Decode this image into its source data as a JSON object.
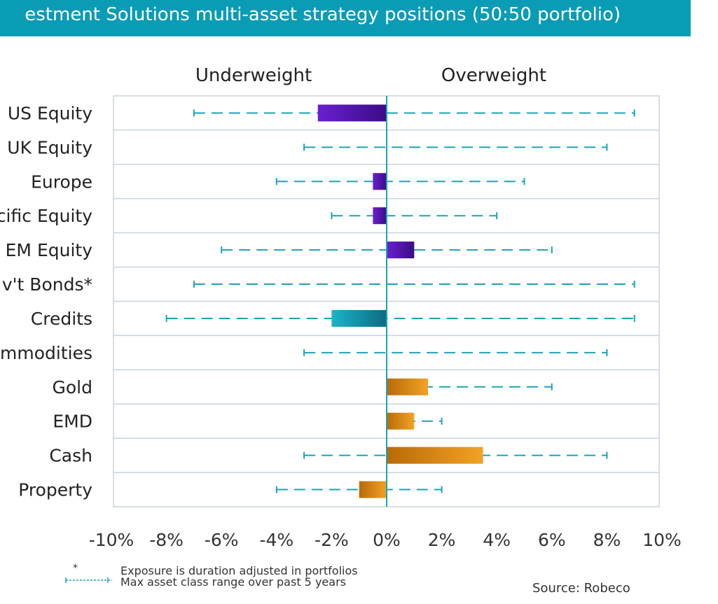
{
  "header": {
    "title": "estment Solutions multi-asset strategy positions (50:50 portfolio)"
  },
  "chart_data": {
    "type": "bar",
    "orientation": "horizontal",
    "column_headers": {
      "left": "Underweight",
      "right": "Overweight"
    },
    "categories": [
      "US Equity",
      "UK Equity",
      "Europe",
      "cific Equity",
      "EM Equity",
      "v't Bonds*",
      "Credits",
      "mmodities",
      "Gold",
      "EMD",
      "Cash",
      "Property"
    ],
    "values": [
      -2.5,
      0,
      -0.5,
      -0.5,
      1,
      0,
      -2,
      0,
      1.5,
      1,
      3.5,
      -1
    ],
    "range_min": [
      -7,
      -3,
      -4,
      -2,
      -6,
      -7,
      -8,
      -3,
      0,
      0,
      -3,
      -4
    ],
    "range_max": [
      9,
      8,
      5,
      4,
      6,
      9,
      9,
      8,
      6,
      2,
      8,
      2
    ],
    "groups": [
      "equity",
      "equity",
      "equity",
      "equity",
      "equity",
      "fixed",
      "fixed",
      "alternative",
      "alternative",
      "alternative",
      "alternative",
      "alternative"
    ],
    "xlim": [
      -10,
      10
    ],
    "xticks": [
      "-10%",
      "-8%",
      "-6%",
      "-4%",
      "-2%",
      "0%",
      "2%",
      "4%",
      "6%",
      "8%",
      "10%"
    ],
    "grid": true,
    "colors": {
      "equity": "#4b12a8",
      "fixed": "#0c7f98",
      "alternative": "#e2870a",
      "range_line": "#1aa3b8",
      "zero_line": "#1aa3b8",
      "grid": "#c8d3dc"
    }
  },
  "footnotes": {
    "star_marker": "*",
    "star_text": "Exposure is duration adjusted in portfolios",
    "range_text": "Max asset class range over past 5 years"
  },
  "source": "Source: Robeco"
}
